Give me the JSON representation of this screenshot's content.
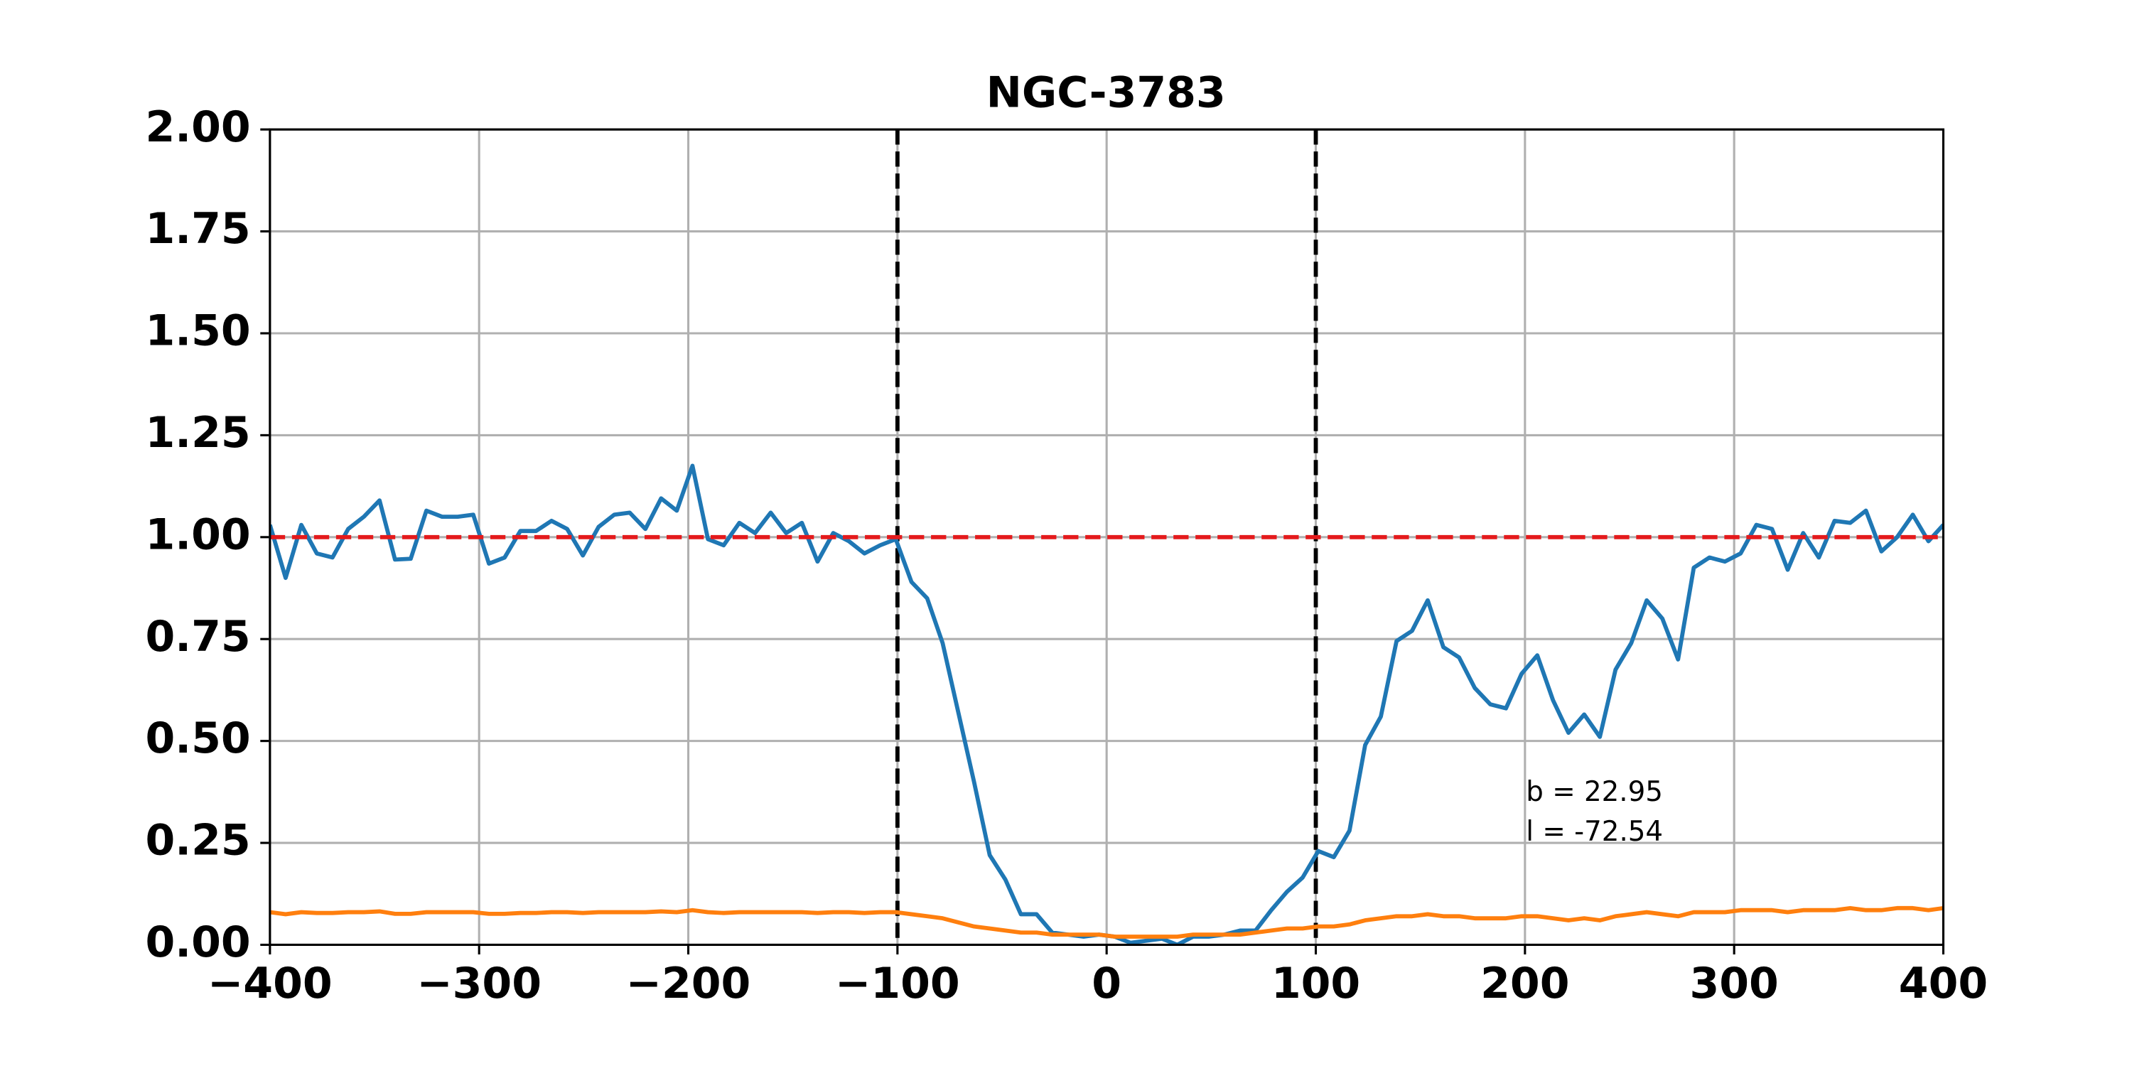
{
  "chart_data": {
    "type": "line",
    "title": "NGC-3783",
    "x": [
      -400,
      -392.5,
      -385.0,
      -377.6,
      -370.1,
      -362.6,
      -355.1,
      -347.6,
      -340.2,
      -332.7,
      -325.2,
      -317.7,
      -310.2,
      -302.8,
      -295.3,
      -287.8,
      -280.3,
      -272.8,
      -265.4,
      -257.9,
      -250.4,
      -242.9,
      -235.4,
      -228.0,
      -220.5,
      -213.0,
      -205.5,
      -198.0,
      -190.6,
      -183.1,
      -175.6,
      -168.1,
      -160.6,
      -153.2,
      -145.7,
      -138.2,
      -130.7,
      -123.2,
      -115.8,
      -108.3,
      -100.8,
      -93.3,
      -85.8,
      -78.4,
      -70.9,
      -63.4,
      -55.9,
      -48.4,
      -41.0,
      -33.5,
      -26.0,
      -18.5,
      -11.0,
      -3.6,
      3.9,
      11.4,
      18.9,
      26.4,
      33.8,
      41.3,
      48.8,
      56.3,
      63.8,
      71.2,
      78.7,
      86.2,
      93.7,
      101.2,
      108.6,
      116.1,
      123.6,
      131.1,
      138.6,
      146.0,
      153.5,
      161.0,
      168.5,
      176.0,
      183.4,
      190.9,
      198.4,
      205.9,
      213.4,
      220.8,
      228.3,
      235.8,
      243.3,
      250.8,
      258.2,
      265.7,
      273.2,
      280.7,
      288.2,
      295.6,
      303.1,
      310.6,
      318.1,
      325.6,
      333.0,
      340.5,
      348.0,
      355.5,
      363.0,
      370.4,
      377.9,
      385.4,
      392.9,
      400
    ],
    "series": [
      {
        "color": "#1f77b4",
        "values": [
          1.03,
          0.9,
          1.03,
          0.96,
          0.95,
          1.02,
          1.05,
          1.09,
          0.945,
          0.947,
          1.065,
          1.05,
          1.05,
          1.055,
          0.935,
          0.95,
          1.015,
          1.015,
          1.04,
          1.02,
          0.955,
          1.025,
          1.055,
          1.06,
          1.02,
          1.095,
          1.065,
          1.175,
          0.995,
          0.98,
          1.035,
          1.01,
          1.06,
          1.01,
          1.035,
          0.94,
          1.01,
          0.99,
          0.96,
          0.98,
          0.995,
          0.89,
          0.85,
          0.74,
          0.57,
          0.4,
          0.22,
          0.16,
          0.075,
          0.075,
          0.03,
          0.025,
          0.02,
          0.025,
          0.02,
          0.005,
          0.01,
          0.015,
          0.0,
          0.02,
          0.02,
          0.025,
          0.035,
          0.035,
          0.085,
          0.13,
          0.165,
          0.23,
          0.215,
          0.28,
          0.49,
          0.56,
          0.745,
          0.77,
          0.845,
          0.73,
          0.705,
          0.63,
          0.59,
          0.58,
          0.665,
          0.71,
          0.6,
          0.52,
          0.565,
          0.51,
          0.675,
          0.74,
          0.845,
          0.8,
          0.7,
          0.925,
          0.95,
          0.94,
          0.96,
          1.03,
          1.02,
          0.92,
          1.01,
          0.95,
          1.04,
          1.035,
          1.065,
          0.965,
          1.0,
          1.055,
          0.99,
          1.03
        ]
      },
      {
        "color": "#ff7f0e",
        "values": [
          0.08,
          0.075,
          0.08,
          0.078,
          0.078,
          0.08,
          0.08,
          0.082,
          0.076,
          0.076,
          0.08,
          0.08,
          0.08,
          0.08,
          0.076,
          0.076,
          0.078,
          0.078,
          0.08,
          0.08,
          0.078,
          0.08,
          0.08,
          0.08,
          0.08,
          0.082,
          0.08,
          0.085,
          0.08,
          0.078,
          0.08,
          0.08,
          0.08,
          0.08,
          0.08,
          0.078,
          0.08,
          0.08,
          0.078,
          0.08,
          0.08,
          0.075,
          0.07,
          0.065,
          0.055,
          0.045,
          0.04,
          0.035,
          0.03,
          0.03,
          0.025,
          0.025,
          0.025,
          0.025,
          0.02,
          0.02,
          0.02,
          0.02,
          0.02,
          0.025,
          0.025,
          0.025,
          0.025,
          0.03,
          0.035,
          0.04,
          0.04,
          0.045,
          0.045,
          0.05,
          0.06,
          0.065,
          0.07,
          0.07,
          0.075,
          0.07,
          0.07,
          0.065,
          0.065,
          0.065,
          0.07,
          0.07,
          0.065,
          0.06,
          0.065,
          0.06,
          0.07,
          0.075,
          0.08,
          0.075,
          0.07,
          0.08,
          0.08,
          0.08,
          0.085,
          0.085,
          0.085,
          0.08,
          0.085,
          0.085,
          0.085,
          0.09,
          0.085,
          0.085,
          0.09,
          0.09,
          0.085,
          0.09
        ]
      }
    ],
    "vlines": [
      -100,
      100
    ],
    "vline_color": "#000000",
    "hline": 1.0,
    "hline_color": "#e41a1c",
    "annotations": [
      "b = 22.95",
      "l = -72.54"
    ],
    "xlim": [
      -400,
      400
    ],
    "ylim": [
      0,
      2
    ],
    "xticks": [
      {
        "value": -400,
        "label": "−400"
      },
      {
        "value": -300,
        "label": "−300"
      },
      {
        "value": -200,
        "label": "−200"
      },
      {
        "value": -100,
        "label": "−100"
      },
      0,
      100,
      200,
      300,
      400
    ],
    "yticks": [
      {
        "value": 0,
        "label": "0.00"
      },
      {
        "value": 0.25,
        "label": "0.25"
      },
      {
        "value": 0.5,
        "label": "0.50"
      },
      {
        "value": 0.75,
        "label": "0.75"
      },
      {
        "value": 1,
        "label": "1.00"
      },
      {
        "value": 1.25,
        "label": "1.25"
      },
      {
        "value": 1.5,
        "label": "1.50"
      },
      {
        "value": 1.75,
        "label": "1.75"
      },
      {
        "value": 2,
        "label": "2.00"
      }
    ],
    "grid": true
  }
}
